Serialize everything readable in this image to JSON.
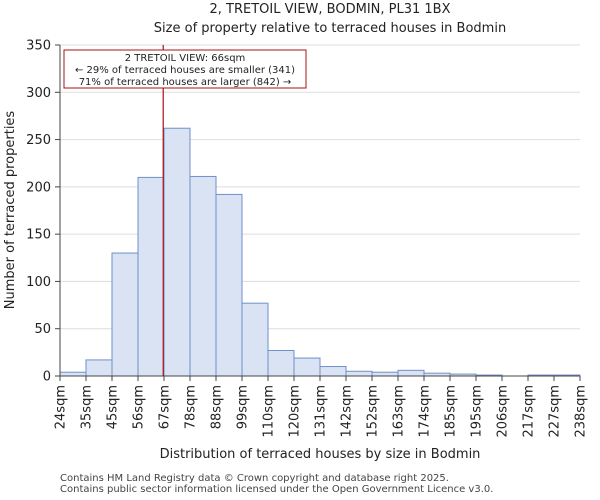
{
  "chart_data": {
    "type": "bar",
    "title_lines": [
      "2, TRETOIL VIEW, BODMIN, PL31 1BX",
      "Size of property relative to terraced houses in Bodmin"
    ],
    "xlabel": "Distribution of terraced houses by size in Bodmin",
    "ylabel": "Number of terraced properties",
    "ylim": [
      0,
      350
    ],
    "yticks": [
      0,
      50,
      100,
      150,
      200,
      250,
      300,
      350
    ],
    "x_tick_labels": [
      "24sqm",
      "35sqm",
      "45sqm",
      "56sqm",
      "67sqm",
      "78sqm",
      "88sqm",
      "99sqm",
      "110sqm",
      "120sqm",
      "131sqm",
      "142sqm",
      "152sqm",
      "163sqm",
      "174sqm",
      "185sqm",
      "195sqm",
      "206sqm",
      "217sqm",
      "227sqm",
      "238sqm"
    ],
    "values": [
      4,
      17,
      130,
      210,
      262,
      211,
      192,
      77,
      27,
      19,
      10,
      5,
      4,
      6,
      3,
      2,
      1,
      0,
      1,
      1
    ],
    "marker": {
      "value_sqm": 66,
      "bin_position": 3.97
    },
    "annotation_lines": [
      "2 TRETOIL VIEW: 66sqm",
      "← 29% of terraced houses are smaller (341)",
      "71% of terraced houses are larger (842) →"
    ],
    "colors": {
      "bar_fill": "#dae3f3",
      "bar_edge": "#6f8fc8",
      "marker": "#aa1111",
      "annotation_border": "#aa1111"
    }
  },
  "footer": {
    "line1": "Contains HM Land Registry data © Crown copyright and database right 2025.",
    "line2": "Contains public sector information licensed under the Open Government Licence v3.0."
  }
}
